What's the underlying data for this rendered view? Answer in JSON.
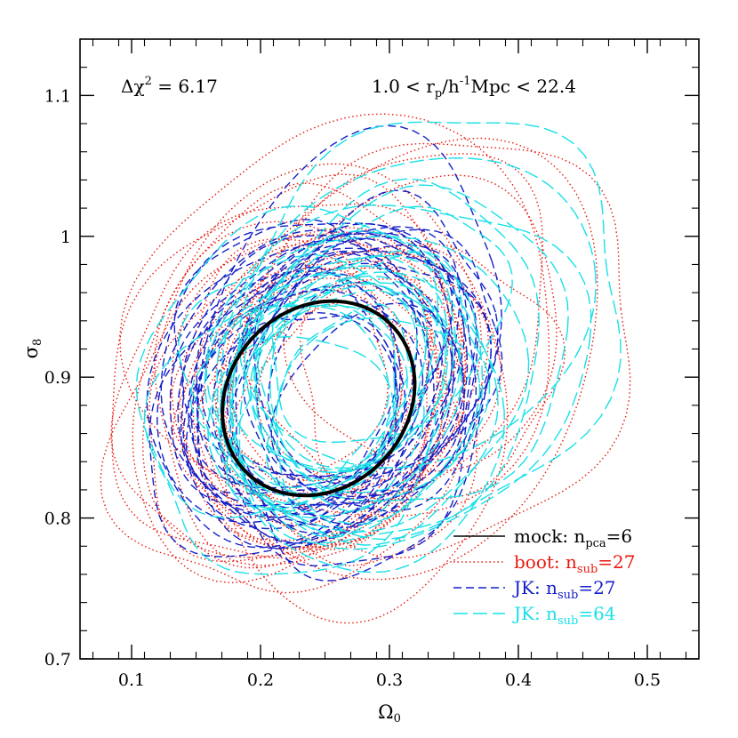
{
  "chart_data": {
    "type": "scatter",
    "title": "",
    "xlabel": "Ω",
    "xlabel_sub": "0",
    "ylabel": "σ",
    "ylabel_sub": "8",
    "xlim": [
      0.06,
      0.54
    ],
    "ylim": [
      0.7,
      1.14
    ],
    "xticks": [
      0.1,
      0.2,
      0.3,
      0.4,
      0.5
    ],
    "xtick_labels": [
      "0.1",
      "0.2",
      "0.3",
      "0.4",
      "0.5"
    ],
    "yticks": [
      0.7,
      0.8,
      0.9,
      1.0,
      1.1
    ],
    "ytick_labels": [
      "0.7",
      "0.8",
      "0.9",
      "1",
      "1.1"
    ],
    "annotation_left": {
      "prefix": "Δχ",
      "sup": "2",
      "suffix": " = 6.17"
    },
    "annotation_right": {
      "a": "1.0 < r",
      "a_sub": "p",
      "b": "/h",
      "b_sup": "-1",
      "c": "Mpc < 22.4"
    },
    "legend_position": "bottom-right",
    "series": [
      {
        "name": "mock",
        "label_main": "mock: n",
        "label_sub": "pca",
        "label_tail": "=6",
        "color": "#000000",
        "style": "solid",
        "count": 1,
        "center": [
          0.245,
          0.885
        ],
        "semi_x": 0.075,
        "semi_y": 0.068,
        "rotation": 0.12
      },
      {
        "name": "boot",
        "label_main": "boot: n",
        "label_sub": "sub",
        "label_tail": "=27",
        "color": "#e8190f",
        "style": "dotted",
        "count": 27,
        "center": [
          0.25,
          0.885
        ],
        "semi_x": 0.098,
        "semi_y": 0.092,
        "rotation": 0.15
      },
      {
        "name": "JK27",
        "label_main": "JK: n",
        "label_sub": "sub",
        "label_tail": "=27",
        "color": "#1420c8",
        "style": "dashed",
        "count": 27,
        "center": [
          0.255,
          0.89
        ],
        "semi_x": 0.092,
        "semi_y": 0.086,
        "rotation": 0.15
      },
      {
        "name": "JK64",
        "label_main": "JK: n",
        "label_sub": "sub",
        "label_tail": "=64",
        "color": "#18e0e8",
        "style": "longdash",
        "count": 27,
        "center": [
          0.255,
          0.89
        ],
        "semi_x": 0.092,
        "semi_y": 0.086,
        "rotation": 0.15
      }
    ]
  }
}
